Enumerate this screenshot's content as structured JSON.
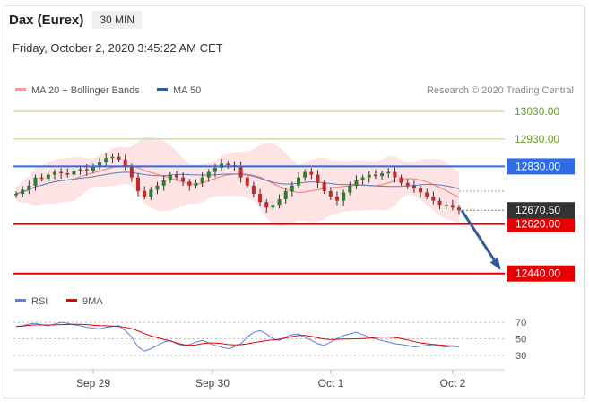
{
  "header": {
    "instrument": "Dax (Eurex)",
    "timeframe": "30 MIN",
    "datetime": "Friday, October 2, 2020 3:45:22 AM CET"
  },
  "legend": {
    "ma20_label": "MA 20 + Bollinger Bands",
    "ma50_label": "MA 50",
    "copyright": "Research © 2020 Trading Central",
    "rsi_label": "RSI",
    "ma9_label": "9MA"
  },
  "colors": {
    "resistance": "#2f6be6",
    "support": "#e60000",
    "target": "#c9e0a8",
    "bollinger": "#fddede",
    "ma20": "#f07878",
    "ma50": "#5a7db8",
    "up_candle": "#2e7d32",
    "down_candle": "#c62828",
    "arrow": "#2e5c9c",
    "last_price": "#333333"
  },
  "chart_data": {
    "type": "candlestick",
    "price_range": [
      12390,
      13070
    ],
    "x_labels": [
      "Sep 29",
      "Sep 30",
      "Oct 1",
      "Oct 2"
    ],
    "levels": [
      {
        "value": 13030,
        "label": "13030.00",
        "kind": "target"
      },
      {
        "value": 12930,
        "label": "12930.00",
        "kind": "target"
      },
      {
        "value": 12830,
        "label": "12830.00",
        "kind": "resistance"
      },
      {
        "value": 12620,
        "label": "12620.00",
        "kind": "support"
      },
      {
        "value": 12440,
        "label": "12440.00",
        "kind": "support"
      }
    ],
    "last_price": {
      "value": 12670.5,
      "label": "12670.50"
    },
    "forecast_arrow": {
      "from": 12670,
      "to": 12460
    },
    "close_series": [
      12730,
      12745,
      12760,
      12790,
      12785,
      12800,
      12810,
      12805,
      12800,
      12815,
      12820,
      12815,
      12830,
      12845,
      12860,
      12865,
      12855,
      12830,
      12790,
      12740,
      12720,
      12745,
      12760,
      12780,
      12800,
      12790,
      12775,
      12760,
      12770,
      12790,
      12810,
      12825,
      12840,
      12835,
      12830,
      12790,
      12760,
      12730,
      12700,
      12680,
      12690,
      12710,
      12740,
      12760,
      12790,
      12810,
      12800,
      12770,
      12740,
      12720,
      12705,
      12735,
      12760,
      12780,
      12790,
      12800,
      12795,
      12805,
      12810,
      12790,
      12770,
      12760,
      12750,
      12735,
      12720,
      12705,
      12690,
      12690,
      12680,
      12670
    ],
    "rsi": {
      "ylim": [
        20,
        80
      ],
      "ticks": [
        30,
        50,
        70
      ],
      "values": [
        65,
        66,
        68,
        69,
        67,
        66,
        68,
        70,
        69,
        67,
        66,
        64,
        63,
        62,
        64,
        65,
        66,
        60,
        52,
        40,
        35,
        38,
        42,
        46,
        48,
        44,
        42,
        43,
        46,
        48,
        45,
        42,
        40,
        38,
        40,
        44,
        52,
        58,
        60,
        56,
        50,
        48,
        52,
        55,
        56,
        52,
        48,
        44,
        42,
        46,
        50,
        54,
        56,
        58,
        55,
        52,
        50,
        48,
        46,
        44,
        43,
        42,
        40,
        41,
        42,
        43,
        41,
        40,
        41,
        40
      ]
    }
  }
}
